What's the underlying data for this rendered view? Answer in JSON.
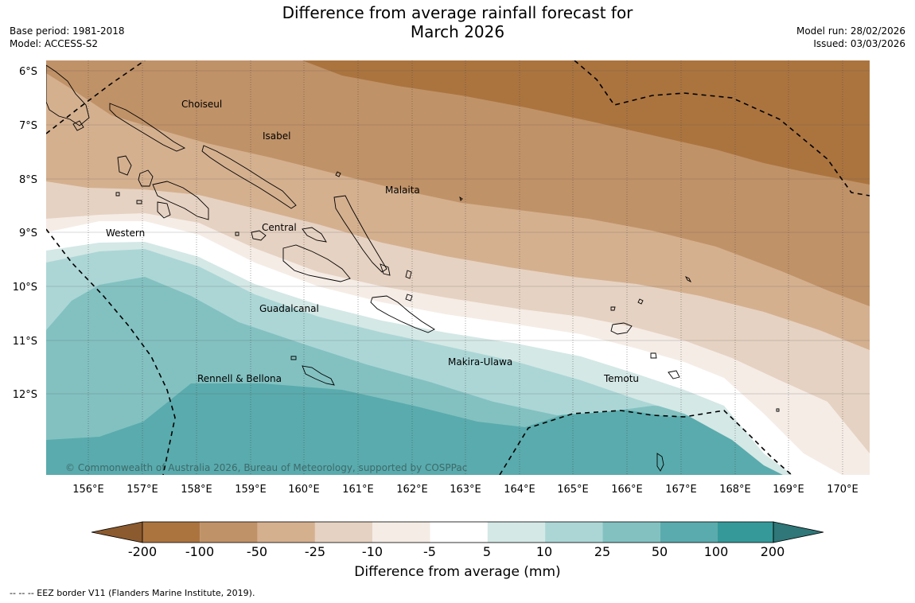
{
  "header": {
    "title_line1": "Difference from average rainfall forecast for",
    "title_line2": "March 2026",
    "base_period": "Base period: 1981-2018",
    "model": "Model: ACCESS-S2",
    "model_run": "Model run: 28/02/2026",
    "issued": "Issued: 03/03/2026"
  },
  "map": {
    "lat_labels": [
      "6°S",
      "7°S",
      "8°S",
      "9°S",
      "10°S",
      "11°S",
      "12°S"
    ],
    "lon_labels": [
      "156°E",
      "157°E",
      "158°E",
      "159°E",
      "160°E",
      "161°E",
      "162°E",
      "163°E",
      "164°E",
      "165°E",
      "166°E",
      "167°E",
      "168°E",
      "169°E",
      "170°E"
    ],
    "regions": {
      "choiseul": "Choiseul",
      "isabel": "Isabel",
      "malaita": "Malaita",
      "central": "Central",
      "western": "Western",
      "guadalcanal": "Guadalcanal",
      "makira": "Makira-Ulawa",
      "temotu": "Temotu",
      "rennell": "Rennell & Bellona"
    },
    "copyright": "© Commonwealth of Australia 2026, Bureau of Meteorology, supported by COSPPac"
  },
  "colorbar": {
    "title": "Difference from average (mm)",
    "labels": [
      "-200",
      "-100",
      "-50",
      "-25",
      "-10",
      "-5",
      "5",
      "10",
      "25",
      "50",
      "100",
      "200"
    ],
    "colors": [
      "#8b5a2e",
      "#ab743f",
      "#c09268",
      "#d4b08f",
      "#e6d2c2",
      "#f5ece6",
      "#ffffff",
      "#d4e8e6",
      "#acd6d6",
      "#83c1c1",
      "#5aabad",
      "#35999a",
      "#2f7778"
    ]
  },
  "footer": {
    "eez": "--  --  -- EEZ border V11 (Flanders Marine Institute, 2019)."
  }
}
